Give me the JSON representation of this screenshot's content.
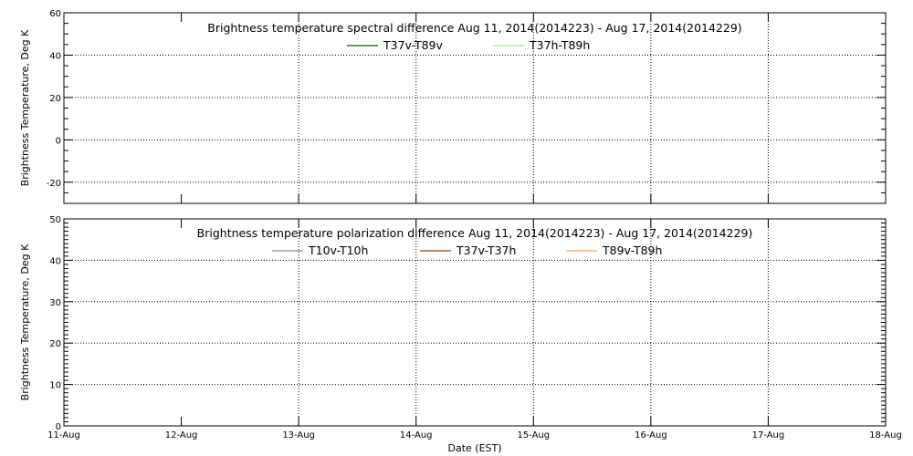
{
  "chart_data": [
    {
      "type": "line",
      "title": "Brightness temperature spectral difference     Aug 11, 2014(2014223) - Aug 17, 2014(2014229)",
      "xlabel": "",
      "ylabel": "Brightness Temperature, Deg K",
      "ylim": [
        -30,
        60
      ],
      "yticks": [
        -20,
        0,
        20,
        40,
        60
      ],
      "ytick_labels": [
        "-20",
        "0",
        "20",
        "40",
        "60"
      ],
      "y_minor_step": 5,
      "xlim": [
        "2014-08-11",
        "2014-08-18"
      ],
      "x_categories": [
        "11-Aug",
        "12-Aug",
        "13-Aug",
        "14-Aug",
        "15-Aug",
        "16-Aug",
        "17-Aug",
        "18-Aug"
      ],
      "x_grid_after_index": 1,
      "grid": true,
      "legend_position": "top",
      "series": [
        {
          "name": "T37v-T89v",
          "color": "#006400",
          "values": []
        },
        {
          "name": "T37h-T89h",
          "color": "#90ee90",
          "values": []
        }
      ]
    },
    {
      "type": "line",
      "title": "Brightness temperature polarization difference     Aug 11, 2014(2014223) - Aug 17, 2014(2014229)",
      "xlabel": "Date (EST)",
      "ylabel": "Brightness Temperature, Deg K",
      "ylim": [
        0,
        50
      ],
      "yticks": [
        0,
        10,
        20,
        30,
        40,
        50
      ],
      "ytick_labels": [
        "0",
        "10",
        "20",
        "30",
        "40",
        "50"
      ],
      "y_minor_step": 1,
      "xlim": [
        "2014-08-11",
        "2014-08-18"
      ],
      "x_categories": [
        "11-Aug",
        "12-Aug",
        "13-Aug",
        "14-Aug",
        "15-Aug",
        "16-Aug",
        "17-Aug",
        "18-Aug"
      ],
      "x_grid_after_index": 1,
      "grid": true,
      "legend_position": "top",
      "series": [
        {
          "name": "T10v-T10h",
          "color": "#8a8a9a",
          "values": []
        },
        {
          "name": "T37v-T37h",
          "color": "#8b4513",
          "values": []
        },
        {
          "name": "T89v-T89h",
          "color": "#f4a460",
          "values": []
        }
      ]
    }
  ]
}
